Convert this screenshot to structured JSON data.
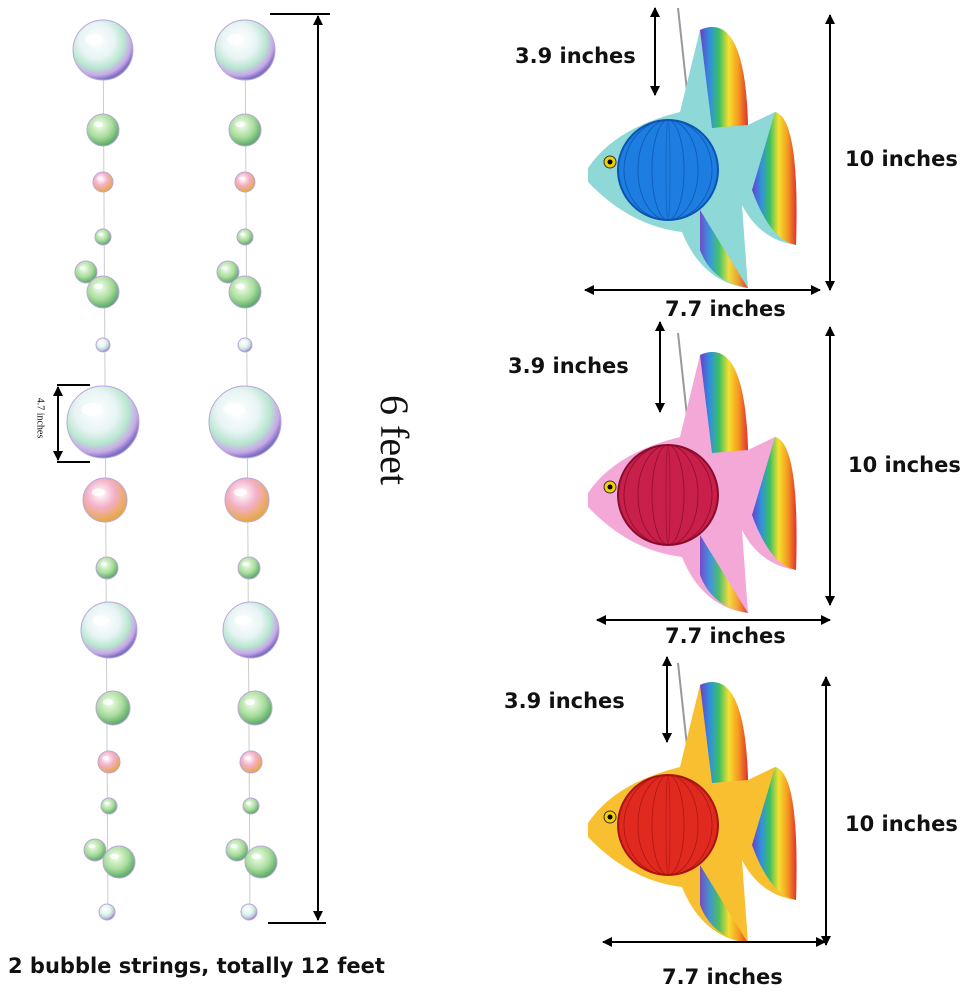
{
  "bubble_strings": {
    "length_label": "6 feet",
    "bubble_size_label": "4.7 inches",
    "caption": "2 bubble strings, totally 12 feet"
  },
  "fish": [
    {
      "string_label": "3.9 inches",
      "height_label": "10 inches",
      "width_label": "7.7 inches"
    },
    {
      "string_label": "3.9 inches",
      "height_label": "10 inches",
      "width_label": "7.7 inches"
    },
    {
      "string_label": "3.9 inches",
      "height_label": "10 inches",
      "width_label": "7.7 inches"
    }
  ]
}
